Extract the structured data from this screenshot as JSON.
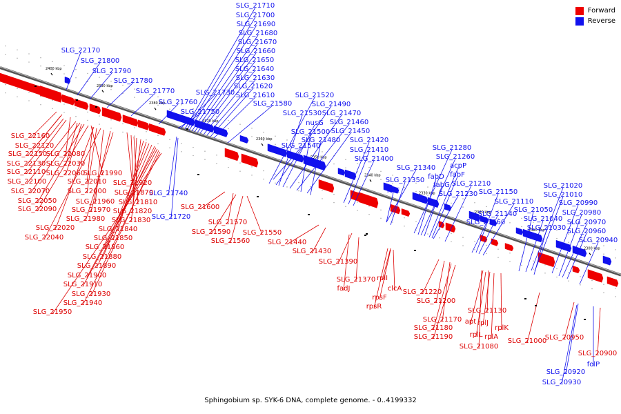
{
  "legend": {
    "forward": {
      "label": "Forward",
      "color": "#ee0000"
    },
    "reverse": {
      "label": "Reverse",
      "color": "#1111ee"
    }
  },
  "caption": "Sphingobium sp. SYK-6 DNA, complete genome. - 0..4199332",
  "scale_labels": [
    "2400 kbp",
    "2390 kbp",
    "2380 kbp",
    "2370 kbp",
    "2360 kbp",
    "2350 kbp",
    "2340 kbp",
    "2330 kbp",
    "2320 kbp",
    "2310 kbp",
    "2300 kbp"
  ],
  "reverse_genes": [
    "SLG_22170",
    "SLG_21800",
    "SLG_21790",
    "SLG_21780",
    "SLG_21770",
    "SLG_21760",
    "SLG_21750",
    "SLG_21730",
    "SLG_21710",
    "SLG_21700",
    "SLG_21690",
    "SLG_21680",
    "SLG_21670",
    "SLG_21660",
    "SLG_21650",
    "SLG_21640",
    "SLG_21630",
    "SLG_21620",
    "SLG_21610",
    "SLG_21580",
    "SLG_21520",
    "SLG_21490",
    "SLG_21530",
    "nusG",
    "SLG_21470",
    "SLG_21460",
    "SLG_21500",
    "SLG_21450",
    "SLG_21480",
    "SLG_21420",
    "SLG_21540",
    "SLG_21410",
    "SLG_21400",
    "SLG_21280",
    "SLG_21260",
    "SLG_21340",
    "acpP",
    "fabD",
    "fabF",
    "SLG_21350",
    "fabG",
    "SLG_21210",
    "folE",
    "SLG_21230",
    "SLG_21150",
    "SLG_21020",
    "SLG_21110",
    "SLG_21010",
    "SLG_21050",
    "SLG_20990",
    "SLG_21140",
    "SLG_21040",
    "SLG_20980",
    "SLG_21160",
    "SLG_21030",
    "SLG_20970",
    "SLG_20960",
    "SLG_20940",
    "SLG_21740",
    "SLG_21720",
    "SLG_20920",
    "SLG_20930",
    "folP"
  ],
  "forward_genes": [
    "SLG_22160",
    "SLG_22120",
    "SLG_22150",
    "SLG_22080",
    "SLG_22130",
    "SLG_22110",
    "SLG_22030",
    "SLG_22060",
    "SLG_21990",
    "SLG_22100",
    "SLG_22010",
    "SLG_21920",
    "SLG_22070",
    "SLG_22000",
    "SLG_21870",
    "SLG_22050",
    "SLG_21960",
    "SLG_21810",
    "SLG_22090",
    "SLG_21970",
    "SLG_21820",
    "SLG_21980",
    "SLG_21830",
    "SLG_22020",
    "SLG_21840",
    "SLG_22040",
    "SLG_21850",
    "SLG_21860",
    "SLG_21880",
    "SLG_21890",
    "SLG_21900",
    "SLG_21910",
    "SLG_21930",
    "SLG_21940",
    "SLG_21950",
    "SLG_21600",
    "SLG_21570",
    "SLG_21590",
    "SLG_21550",
    "SLG_21560",
    "SLG_21440",
    "SLG_21430",
    "SLG_21390",
    "SLG_21370",
    "fadJ",
    "rplI",
    "rpsF",
    "clcA",
    "rpsR",
    "SLG_21220",
    "SLG_21200",
    "SLG_21130",
    "SLG_21170",
    "apt",
    "rplJ",
    "SLG_21180",
    "rplK",
    "rplL",
    "SLG_21190",
    "rplA",
    "SLG_21080",
    "SLG_21000",
    "SLG_20950",
    "SLG_20900"
  ]
}
